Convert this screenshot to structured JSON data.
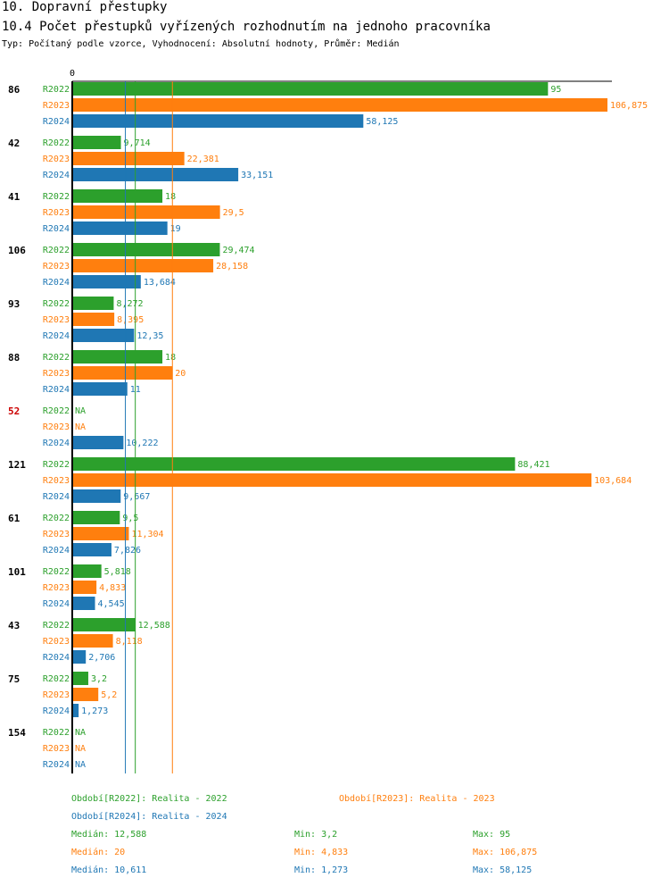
{
  "header": {
    "title": "10. Dopravní přestupky",
    "subtitle": "10.4 Počet přestupků vyřízených rozhodnutím na jednoho pracovníka",
    "meta": "Typ: Počítaný podle vzorce, Vyhodnocení: Absolutní hodnoty, Průměr: Medián"
  },
  "chart_data": {
    "type": "bar",
    "orientation": "horizontal",
    "axis_zero_label": "0",
    "xlim": [
      0,
      106.875
    ],
    "colors": {
      "R2022": "#2ca02c",
      "R2023": "#ff7f0e",
      "R2024": "#1f77b4",
      "highlight_group": "#cc0000",
      "axis": "#000000"
    },
    "series_names": [
      "R2022",
      "R2023",
      "R2024"
    ],
    "groups": [
      {
        "label": "86",
        "highlight": false,
        "values": [
          95,
          106.875,
          58.125
        ],
        "labels": [
          "95",
          "106,875",
          "58,125"
        ]
      },
      {
        "label": "42",
        "highlight": false,
        "values": [
          9.714,
          22.381,
          33.151
        ],
        "labels": [
          "9,714",
          "22,381",
          "33,151"
        ]
      },
      {
        "label": "41",
        "highlight": false,
        "values": [
          18,
          29.5,
          19
        ],
        "labels": [
          "18",
          "29,5",
          "19"
        ]
      },
      {
        "label": "106",
        "highlight": false,
        "values": [
          29.474,
          28.158,
          13.684
        ],
        "labels": [
          "29,474",
          "28,158",
          "13,684"
        ]
      },
      {
        "label": "93",
        "highlight": false,
        "values": [
          8.272,
          8.395,
          12.35
        ],
        "labels": [
          "8,272",
          "8,395",
          "12,35"
        ]
      },
      {
        "label": "88",
        "highlight": false,
        "values": [
          18,
          20,
          11
        ],
        "labels": [
          "18",
          "20",
          "11"
        ]
      },
      {
        "label": "52",
        "highlight": true,
        "values": [
          null,
          null,
          10.222
        ],
        "labels": [
          "NA",
          "NA",
          "10,222"
        ]
      },
      {
        "label": "121",
        "highlight": false,
        "values": [
          88.421,
          103.684,
          9.667
        ],
        "labels": [
          "88,421",
          "103,684",
          "9,667"
        ]
      },
      {
        "label": "61",
        "highlight": false,
        "values": [
          9.5,
          11.304,
          7.826
        ],
        "labels": [
          "9,5",
          "11,304",
          "7,826"
        ]
      },
      {
        "label": "101",
        "highlight": false,
        "values": [
          5.818,
          4.833,
          4.545
        ],
        "labels": [
          "5,818",
          "4,833",
          "4,545"
        ]
      },
      {
        "label": "43",
        "highlight": false,
        "values": [
          12.588,
          8.118,
          2.706
        ],
        "labels": [
          "12,588",
          "8,118",
          "2,706"
        ]
      },
      {
        "label": "75",
        "highlight": false,
        "values": [
          3.2,
          5.2,
          1.273
        ],
        "labels": [
          "3,2",
          "5,2",
          "1,273"
        ]
      },
      {
        "label": "154",
        "highlight": false,
        "values": [
          null,
          null,
          null
        ],
        "labels": [
          "NA",
          "NA",
          "NA"
        ]
      }
    ],
    "median_lines": {
      "R2022": 12.588,
      "R2023": 20,
      "R2024": 10.611
    },
    "legend": [
      {
        "series": "R2022",
        "text": "Období[R2022]: Realita - 2022"
      },
      {
        "series": "R2023",
        "text": "Období[R2023]: Realita - 2023"
      },
      {
        "series": "R2024",
        "text": "Období[R2024]: Realita - 2024"
      }
    ],
    "stats": [
      {
        "series": "R2022",
        "median": "Medián: 12,588",
        "min": "Min: 3,2",
        "max": "Max: 95"
      },
      {
        "series": "R2023",
        "median": "Medián: 20",
        "min": "Min: 4,833",
        "max": "Max: 106,875"
      },
      {
        "series": "R2024",
        "median": "Medián: 10,611",
        "min": "Min: 1,273",
        "max": "Max: 58,125"
      }
    ]
  }
}
